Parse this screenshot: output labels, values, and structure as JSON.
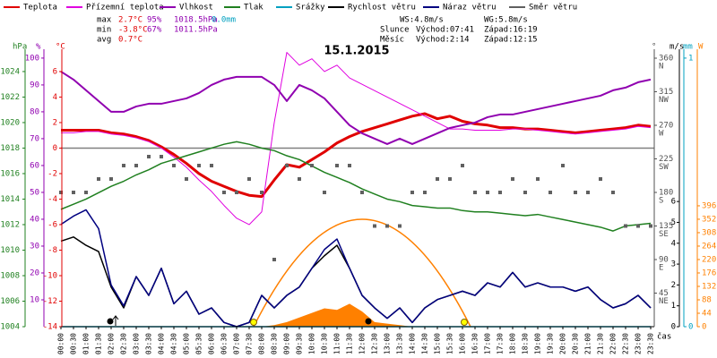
{
  "chart_data": {
    "type": "line",
    "title": "15.1.2015",
    "x_label": "čas",
    "stats": [
      [
        "max",
        "2.7°C",
        "95%",
        "1018.5hPa",
        "0.0mm"
      ],
      [
        "min",
        "-3.8°C",
        "67%",
        "1011.5hPa"
      ],
      [
        "avg",
        "0.7°C"
      ]
    ],
    "astro": [
      [
        "WS:4.8m/s",
        "WG:5.8m/s"
      ],
      [
        "Slunce",
        "Východ:07:41",
        "Západ:16:19"
      ],
      [
        "Měsíc",
        "Východ:2:14",
        "Západ:12:15"
      ]
    ],
    "categories": [
      "00:00",
      "00:30",
      "01:00",
      "01:30",
      "02:00",
      "02:30",
      "03:00",
      "03:30",
      "04:00",
      "04:30",
      "05:00",
      "05:30",
      "06:00",
      "06:30",
      "07:00",
      "07:30",
      "08:00",
      "08:30",
      "09:00",
      "09:30",
      "10:00",
      "10:30",
      "11:00",
      "11:30",
      "12:00",
      "12:30",
      "13:00",
      "13:30",
      "14:00",
      "14:30",
      "15:00",
      "15:30",
      "16:00",
      "16:30",
      "17:00",
      "17:30",
      "18:00",
      "18:30",
      "19:00",
      "19:30",
      "20:00",
      "20:30",
      "21:00",
      "21:30",
      "22:00",
      "22:30",
      "23:00",
      "23:30"
    ],
    "axes": [
      {
        "label": "hPa",
        "lim": [
          1004,
          1025.75
        ],
        "ticks": [
          1004,
          1006,
          1008,
          1010,
          1012,
          1014,
          1016,
          1018,
          1020,
          1022,
          1024
        ],
        "color": "#208020"
      },
      {
        "label": "%",
        "lim": [
          0,
          103.3
        ],
        "ticks": [
          10,
          20,
          30,
          40,
          50,
          60,
          70,
          80,
          90,
          100
        ],
        "color": "#9000b0"
      },
      {
        "label": "°C",
        "lim": [
          -14,
          7.75
        ],
        "ticks": [
          -14,
          -12,
          -10,
          -8,
          -6,
          -4,
          -2,
          0,
          2,
          4,
          6
        ],
        "color": "#e00000"
      },
      {
        "label": "°",
        "lim": [
          0,
          372
        ],
        "ticks": [
          45,
          90,
          135,
          180,
          225,
          270,
          315,
          360
        ],
        "tick_names": [
          "NE",
          "E",
          "SE",
          "S",
          "SW",
          "W",
          "NW",
          "N"
        ],
        "color": "#505050"
      },
      {
        "label": "m/s",
        "lim": [
          0,
          13.3
        ],
        "ticks": [
          0,
          1,
          2,
          3,
          4,
          5,
          6
        ],
        "color": "#000000"
      },
      {
        "label": "mm",
        "lim": [
          0,
          1.033
        ],
        "ticks": [
          0,
          1
        ],
        "color": "#00a0c0"
      },
      {
        "label": "W",
        "lim": [
          0,
          909
        ],
        "ticks": [
          0,
          44,
          88,
          132,
          176,
          220,
          264,
          308,
          352,
          396
        ],
        "color": "#ff8000"
      }
    ],
    "zero_line": 0,
    "series": [
      {
        "type": "area",
        "color": "#ff8000",
        "axis": "W",
        "values": [
          0,
          0,
          0,
          0,
          0,
          0,
          0,
          0,
          0,
          0,
          0,
          0,
          0,
          0,
          0,
          0,
          0,
          5,
          15,
          30,
          45,
          60,
          55,
          75,
          50,
          15,
          10,
          5,
          0,
          0,
          0,
          0,
          0,
          0,
          0,
          0,
          0,
          0,
          0,
          0,
          0,
          0,
          0,
          0,
          0,
          0,
          0,
          0
        ]
      },
      {
        "name": "Teplota",
        "color": "#e00000",
        "axis": "°C",
        "width": 3,
        "values": [
          1.4,
          1.4,
          1.4,
          1.4,
          1.2,
          1.1,
          0.9,
          0.6,
          0.1,
          -0.5,
          -1.2,
          -2.0,
          -2.6,
          -3.0,
          -3.4,
          -3.7,
          -3.8,
          -2.5,
          -1.3,
          -1.5,
          -0.9,
          -0.3,
          0.4,
          0.9,
          1.3,
          1.6,
          1.9,
          2.2,
          2.5,
          2.7,
          2.3,
          2.5,
          2.1,
          1.9,
          1.8,
          1.6,
          1.6,
          1.5,
          1.5,
          1.4,
          1.3,
          1.2,
          1.3,
          1.4,
          1.5,
          1.6,
          1.8,
          1.7
        ]
      },
      {
        "name": "Přízemní teplota",
        "color": "#e000e0",
        "axis": "°C",
        "width": 1,
        "values": [
          1.2,
          1.2,
          1.3,
          1.3,
          1.1,
          1.0,
          0.8,
          0.5,
          0.0,
          -0.7,
          -1.5,
          -2.5,
          -3.4,
          -4.5,
          -5.5,
          -6.0,
          -5.0,
          2.0,
          7.5,
          6.5,
          7.0,
          6.0,
          6.5,
          5.5,
          5.0,
          4.5,
          4.0,
          3.5,
          3.0,
          2.5,
          2.0,
          1.5,
          1.5,
          1.4,
          1.4,
          1.4,
          1.5,
          1.5,
          1.4,
          1.3,
          1.2,
          1.1,
          1.2,
          1.3,
          1.4,
          1.5,
          1.7,
          1.6
        ]
      },
      {
        "name": "Vlhkost",
        "color": "#9000b0",
        "axis": "%",
        "width": 2,
        "values": [
          95,
          92,
          88,
          84,
          80,
          80,
          82,
          83,
          83,
          84,
          85,
          87,
          90,
          92,
          93,
          93,
          93,
          90,
          84,
          90,
          88,
          85,
          80,
          75,
          72,
          70,
          68,
          70,
          68,
          70,
          72,
          74,
          75,
          76,
          78,
          79,
          79,
          80,
          81,
          82,
          83,
          84,
          85,
          86,
          88,
          89,
          91,
          92
        ]
      },
      {
        "name": "Tlak",
        "color": "#208020",
        "axis": "hPa",
        "width": 1.5,
        "values": [
          1013.2,
          1013.6,
          1014.0,
          1014.5,
          1015.0,
          1015.4,
          1015.9,
          1016.3,
          1016.8,
          1017.1,
          1017.4,
          1017.7,
          1018.0,
          1018.3,
          1018.5,
          1018.3,
          1018.0,
          1017.8,
          1017.4,
          1017.1,
          1016.6,
          1016.1,
          1015.7,
          1015.3,
          1014.8,
          1014.4,
          1014.0,
          1013.8,
          1013.5,
          1013.4,
          1013.3,
          1013.3,
          1013.1,
          1013.0,
          1013.0,
          1012.9,
          1012.8,
          1012.7,
          1012.8,
          1012.6,
          1012.4,
          1012.2,
          1012.0,
          1011.8,
          1011.5,
          1011.9,
          1012.0,
          1012.1
        ]
      },
      {
        "name": "Srážky",
        "color": "#00a0c0",
        "axis": "mm",
        "width": 1.5,
        "values": [
          0,
          0,
          0,
          0,
          0,
          0,
          0,
          0,
          0,
          0,
          0,
          0,
          0,
          0,
          0,
          0,
          0,
          0,
          0,
          0,
          0,
          0,
          0,
          0,
          0,
          0,
          0,
          0,
          0,
          0,
          0,
          0,
          0,
          0,
          0,
          0,
          0,
          0,
          0,
          0,
          0,
          0,
          0,
          0,
          0,
          0,
          0,
          0
        ]
      },
      {
        "name": "Rychlost větru",
        "color": "#000000",
        "axis": "m/s",
        "width": 1.5,
        "values": [
          4.1,
          4.3,
          3.9,
          3.6,
          1.9,
          0.9,
          2.4,
          1.5,
          2.8,
          1.1,
          1.7,
          0.6,
          0.9,
          0.2,
          0.0,
          0.2,
          1.5,
          0.9,
          1.5,
          1.9,
          2.8,
          3.4,
          3.9,
          2.8,
          1.5,
          0.9,
          0.4,
          0.9,
          0.2,
          0.9,
          1.3,
          1.5,
          1.7,
          1.5,
          2.1,
          1.9,
          2.6,
          1.9,
          2.1,
          1.9,
          1.9,
          1.7,
          1.9,
          1.3,
          0.9,
          1.1,
          1.5,
          0.9
        ]
      },
      {
        "name": "Náraz větru",
        "color": "#000080",
        "axis": "m/s",
        "width": 1.5,
        "values": [
          4.9,
          5.3,
          5.6,
          4.7,
          2.0,
          1.0,
          2.4,
          1.5,
          2.8,
          1.1,
          1.7,
          0.6,
          0.9,
          0.2,
          0.0,
          0.2,
          1.5,
          0.9,
          1.5,
          1.9,
          2.8,
          3.7,
          4.2,
          2.8,
          1.5,
          0.9,
          0.4,
          0.9,
          0.2,
          0.9,
          1.3,
          1.5,
          1.7,
          1.5,
          2.1,
          1.9,
          2.6,
          1.9,
          2.1,
          1.9,
          1.9,
          1.7,
          1.9,
          1.3,
          0.9,
          1.1,
          1.5,
          0.9
        ]
      },
      {
        "name": "Směr větru",
        "type": "scatter",
        "color": "#606060",
        "axis": "°",
        "values": [
          180,
          180,
          180,
          198,
          198,
          216,
          216,
          228,
          228,
          216,
          198,
          216,
          216,
          180,
          180,
          198,
          180,
          90,
          216,
          198,
          216,
          180,
          216,
          216,
          180,
          135,
          135,
          135,
          180,
          180,
          198,
          198,
          216,
          180,
          180,
          180,
          198,
          180,
          198,
          180,
          216,
          180,
          180,
          198,
          180,
          135,
          135,
          135
        ]
      }
    ]
  }
}
